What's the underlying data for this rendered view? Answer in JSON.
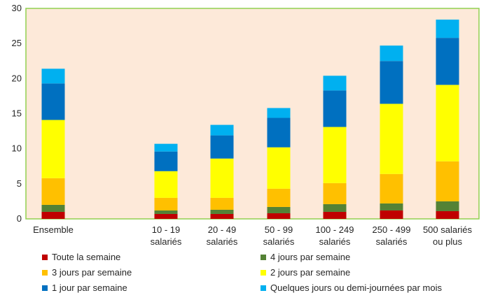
{
  "chart_data": {
    "type": "bar",
    "stacked": true,
    "title": "",
    "xlabel": "",
    "ylabel": "",
    "ylim": [
      0,
      30
    ],
    "yticks": [
      0,
      5,
      10,
      15,
      20,
      25,
      30
    ],
    "grid": false,
    "legend_position": "bottom",
    "plot_background": "#fde9d9",
    "plot_border": "#92d050",
    "categories": [
      {
        "line1": "Ensemble",
        "line2": ""
      },
      {
        "line1": "10 - 19",
        "line2": "salariés"
      },
      {
        "line1": "20 - 49",
        "line2": "salariés"
      },
      {
        "line1": "50 - 99",
        "line2": "salariés"
      },
      {
        "line1": "100 - 249",
        "line2": "salariés"
      },
      {
        "line1": "250 - 499",
        "line2": "salariés"
      },
      {
        "line1": "500 salariés",
        "line2": "ou plus"
      }
    ],
    "series": [
      {
        "name": "Toute la semaine",
        "color": "#c00000",
        "values": [
          1.0,
          0.7,
          0.7,
          0.8,
          1.0,
          1.2,
          1.1
        ]
      },
      {
        "name": "4 jours par semaine",
        "color": "#548235",
        "values": [
          1.0,
          0.5,
          0.6,
          0.9,
          1.1,
          1.0,
          1.4
        ]
      },
      {
        "name": "3 jours par semaine",
        "color": "#ffc000",
        "values": [
          3.8,
          1.8,
          1.7,
          2.6,
          3.0,
          4.2,
          5.7
        ]
      },
      {
        "name": "2 jours par semaine",
        "color": "#ffff00",
        "values": [
          8.3,
          3.8,
          5.6,
          5.9,
          8.0,
          10.0,
          10.9
        ]
      },
      {
        "name": "1 jour par semaine",
        "color": "#0070c0",
        "values": [
          5.2,
          2.8,
          3.3,
          4.2,
          5.2,
          6.1,
          6.7
        ]
      },
      {
        "name": "Quelques jours ou demi-journées par mois",
        "color": "#00b0f0",
        "values": [
          2.1,
          1.1,
          1.5,
          1.4,
          2.1,
          2.2,
          2.6
        ]
      }
    ]
  }
}
